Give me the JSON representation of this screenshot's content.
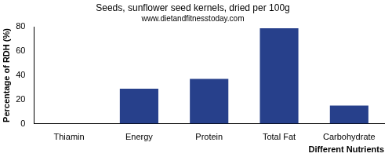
{
  "chart_data": {
    "type": "bar",
    "title": "Seeds, sunflower seed kernels, dried per 100g",
    "subtitle": "www.dietandfitnesstoday.com",
    "x_label": "Different Nutrients",
    "y_label": "Percentage of RDH (%)",
    "categories": [
      "Thiamin",
      "Energy",
      "Protein",
      "Total Fat",
      "Carbohydrate"
    ],
    "values": [
      0,
      29,
      37,
      79,
      15
    ],
    "color": "#27408b",
    "ylim": [
      0,
      80
    ],
    "yticks": [
      0,
      20,
      40,
      60,
      80
    ],
    "grid": false
  }
}
